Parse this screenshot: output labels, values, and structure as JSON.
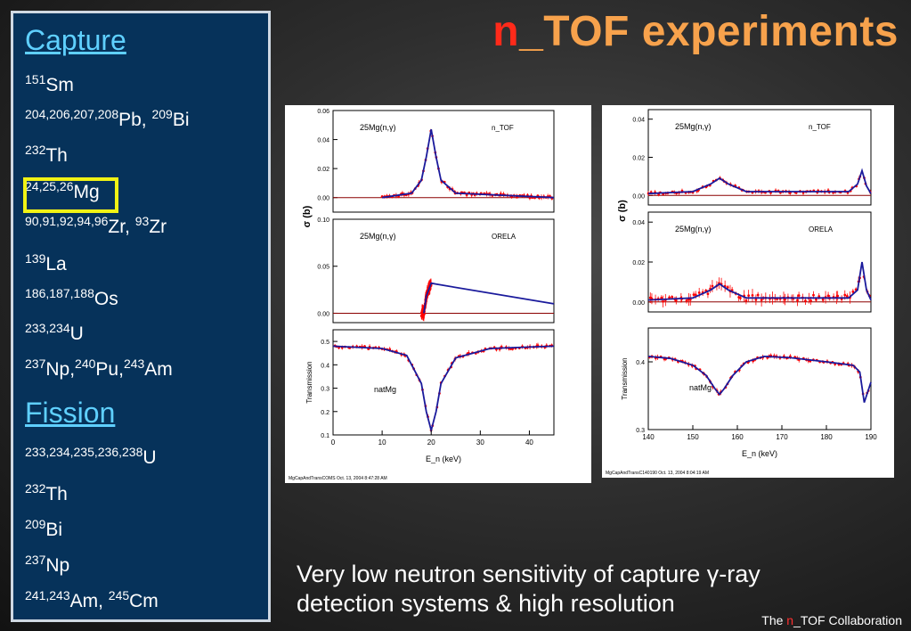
{
  "title": {
    "prefix": "n",
    "suffix": "_TOF experiments"
  },
  "sidebar": {
    "capture_heading": "Capture",
    "capture_items": [
      {
        "sup": "151",
        "el": "Sm",
        "sup2": "",
        "el2": "",
        "sup3": "",
        "el3": ""
      },
      {
        "sup": "204,206,207,208",
        "el": "Pb, ",
        "sup2": "209",
        "el2": "Bi",
        "sup3": "",
        "el3": ""
      },
      {
        "sup": "232",
        "el": "Th",
        "sup2": "",
        "el2": "",
        "sup3": "",
        "el3": ""
      },
      {
        "sup": "24,25,26",
        "el": "Mg",
        "sup2": "",
        "el2": "",
        "sup3": "",
        "el3": ""
      },
      {
        "sup": "90,91,92,94,96",
        "el": "Zr, ",
        "sup2": "93",
        "el2": "Zr",
        "sup3": "",
        "el3": ""
      },
      {
        "sup": "139",
        "el": "La",
        "sup2": "",
        "el2": "",
        "sup3": "",
        "el3": ""
      },
      {
        "sup": "186,187,188",
        "el": "Os",
        "sup2": "",
        "el2": "",
        "sup3": "",
        "el3": ""
      },
      {
        "sup": "233,234",
        "el": "U",
        "sup2": "",
        "el2": "",
        "sup3": "",
        "el3": ""
      },
      {
        "sup": "237",
        "el": "Np,",
        "sup2": "240",
        "el2": "Pu,",
        "sup3": "243",
        "el3": "Am"
      }
    ],
    "fission_heading": "Fission",
    "fission_items": [
      {
        "sup": "233,234,235,236,238",
        "el": "U",
        "sup2": "",
        "el2": ""
      },
      {
        "sup": "232",
        "el": "Th",
        "sup2": "",
        "el2": ""
      },
      {
        "sup": "209",
        "el": "Bi",
        "sup2": "",
        "el2": ""
      },
      {
        "sup": "237",
        "el": "Np",
        "sup2": "",
        "el2": ""
      },
      {
        "sup": "241,243",
        "el": "Am, ",
        "sup2": "245",
        "el2": "Cm"
      }
    ],
    "highlight_color": "#f1f214"
  },
  "caption": {
    "line1": "Very low neutron sensitivity of capture γ-ray",
    "line2": "detection systems & high resolution"
  },
  "credit": {
    "pre": "The ",
    "n": "n",
    "post": "_TOF Collaboration"
  },
  "colors": {
    "data": "#ff0000",
    "fit": "#1a1a9c",
    "baseline": "#8b0000"
  },
  "chart_data": [
    {
      "type": "scatter",
      "xlabel": "E_n (keV)",
      "ylabel_sigma": "σ (b)",
      "footer": "MgCapAndTransCOMS Oct. 13, 2004 8:47:28 AM",
      "xlim": [
        0,
        45
      ],
      "xticks": [
        "0",
        "10",
        "20",
        "30",
        "40"
      ],
      "panels": [
        {
          "name": "n_TOF capture",
          "reaction": "25Mg(n,γ)",
          "facility": "n_TOF",
          "ylim": [
            -0.01,
            0.06
          ],
          "yticks": [
            "0.00",
            "0.02",
            "0.04",
            "0.06"
          ],
          "data_range": [
            10,
            45
          ],
          "peak": {
            "x": 20,
            "y": 0.047
          },
          "fit": [
            [
              10,
              0.0
            ],
            [
              16,
              0.003
            ],
            [
              18,
              0.012
            ],
            [
              19,
              0.028
            ],
            [
              20,
              0.047
            ],
            [
              21,
              0.028
            ],
            [
              22,
              0.012
            ],
            [
              25,
              0.003
            ],
            [
              45,
              0.0
            ]
          ]
        },
        {
          "name": "ORELA capture",
          "reaction": "25Mg(n,γ)",
          "facility": "ORELA",
          "ylim": [
            -0.01,
            0.1
          ],
          "yticks": [
            "0.00",
            "0.05",
            "0.10"
          ],
          "data_range": [
            18,
            20
          ],
          "fit": [
            [
              18.5,
              0.0
            ],
            [
              19,
              0.018
            ],
            [
              20,
              0.032
            ],
            [
              21,
              0.031
            ],
            [
              45,
              0.01
            ]
          ]
        },
        {
          "name": "ORELA transmission",
          "label": "natMg",
          "ylabel": "Transmission",
          "ylim": [
            0.1,
            0.55
          ],
          "yticks": [
            "0.1",
            "0.2",
            "0.3",
            "0.4",
            "0.5"
          ],
          "fit": [
            [
              0,
              0.48
            ],
            [
              10,
              0.47
            ],
            [
              15,
              0.44
            ],
            [
              18,
              0.32
            ],
            [
              19,
              0.2
            ],
            [
              20,
              0.12
            ],
            [
              21,
              0.2
            ],
            [
              22,
              0.32
            ],
            [
              25,
              0.43
            ],
            [
              32,
              0.47
            ],
            [
              45,
              0.48
            ]
          ]
        }
      ]
    },
    {
      "type": "scatter",
      "xlabel": "E_n (keV)",
      "ylabel_sigma": "σ (b)",
      "footer": "MgCapAndTransC140190 Oct. 13, 2004 8:04:19 AM",
      "xlim": [
        140,
        190
      ],
      "xticks": [
        "140",
        "150",
        "160",
        "170",
        "180",
        "190"
      ],
      "panels": [
        {
          "name": "n_TOF capture",
          "reaction": "25Mg(n,γ)",
          "facility": "n_TOF",
          "ylim": [
            -0.005,
            0.045
          ],
          "yticks": [
            "0.00",
            "0.02",
            "0.04"
          ],
          "fit": [
            [
              140,
              0.001
            ],
            [
              150,
              0.002
            ],
            [
              154,
              0.006
            ],
            [
              156,
              0.009
            ],
            [
              158,
              0.006
            ],
            [
              162,
              0.002
            ],
            [
              185,
              0.002
            ],
            [
              187,
              0.006
            ],
            [
              188,
              0.013
            ],
            [
              189,
              0.005
            ],
            [
              190,
              0.001
            ]
          ]
        },
        {
          "name": "ORELA capture",
          "reaction": "25Mg(n,γ)",
          "facility": "ORELA",
          "ylim": [
            -0.005,
            0.045
          ],
          "yticks": [
            "0.00",
            "0.02",
            "0.04"
          ],
          "fit": [
            [
              140,
              0.001
            ],
            [
              150,
              0.002
            ],
            [
              154,
              0.006
            ],
            [
              156,
              0.009
            ],
            [
              158,
              0.006
            ],
            [
              162,
              0.002
            ],
            [
              185,
              0.002
            ],
            [
              187,
              0.006
            ],
            [
              188,
              0.02
            ],
            [
              189,
              0.006
            ],
            [
              190,
              0.001
            ]
          ]
        },
        {
          "name": "transmission",
          "label": "natMg",
          "ylabel": "Transmission",
          "ylim": [
            0.3,
            0.45
          ],
          "yticks": [
            "0.3",
            "0.4"
          ],
          "fit": [
            [
              140,
              0.408
            ],
            [
              145,
              0.405
            ],
            [
              150,
              0.395
            ],
            [
              153,
              0.38
            ],
            [
              155,
              0.36
            ],
            [
              156,
              0.352
            ],
            [
              157,
              0.36
            ],
            [
              159,
              0.38
            ],
            [
              162,
              0.4
            ],
            [
              166,
              0.408
            ],
            [
              172,
              0.406
            ],
            [
              180,
              0.4
            ],
            [
              186,
              0.395
            ],
            [
              187.5,
              0.385
            ],
            [
              188.5,
              0.34
            ],
            [
              189.5,
              0.36
            ],
            [
              190,
              0.37
            ]
          ]
        }
      ]
    }
  ]
}
